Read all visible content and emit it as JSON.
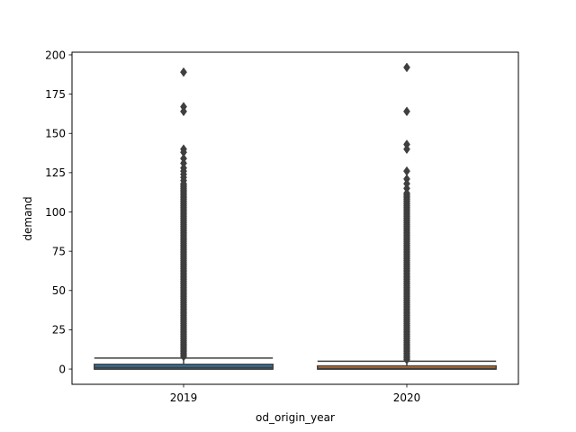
{
  "chart_data": {
    "type": "box",
    "xlabel": "od_origin_year",
    "ylabel": "demand",
    "categories": [
      "2019",
      "2020"
    ],
    "ylim": [
      -9.7,
      201.7
    ],
    "yticks": [
      0,
      25,
      50,
      75,
      100,
      125,
      150,
      175,
      200
    ],
    "yticklabels": [
      "0",
      "25",
      "50",
      "75",
      "100",
      "125",
      "150",
      "175",
      "200"
    ],
    "grid": false,
    "legend": "none",
    "series": [
      {
        "category": "2019",
        "color": "#3274a1",
        "box": {
          "whislo": 0,
          "q1": 0,
          "med": 1,
          "q3": 3,
          "whishi": 7
        },
        "fliers": {
          "continuous_from": 8,
          "continuous_to": 118,
          "sparse": [
            120,
            122,
            124,
            126,
            128,
            131,
            134,
            138,
            140,
            164,
            167,
            189
          ]
        }
      },
      {
        "category": "2020",
        "color": "#e1812c",
        "box": {
          "whislo": 0,
          "q1": 0,
          "med": 0.5,
          "q3": 2,
          "whishi": 5
        },
        "fliers": {
          "continuous_from": 6,
          "continuous_to": 112,
          "sparse": [
            115,
            118,
            121,
            126,
            140,
            143,
            164,
            192
          ]
        }
      }
    ]
  },
  "colors": {
    "outline": "#3f3f3f",
    "axes": "#000000"
  }
}
